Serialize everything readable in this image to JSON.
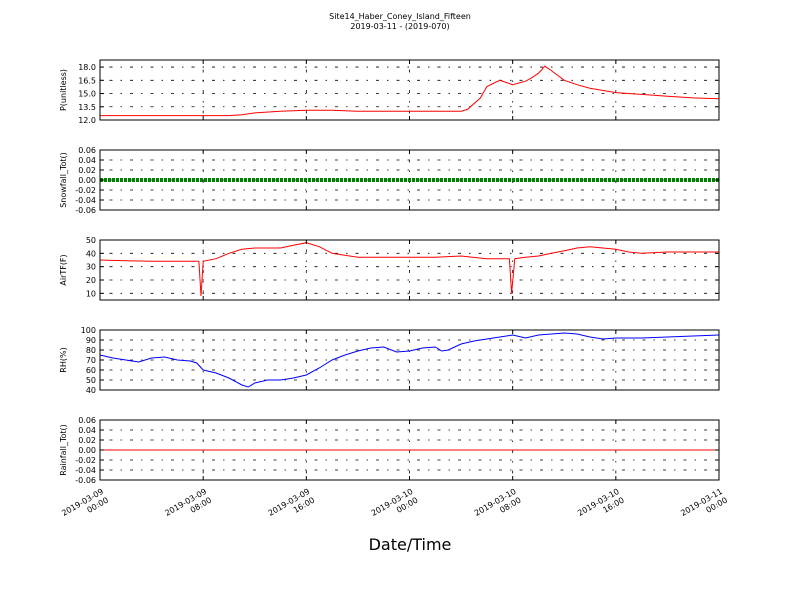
{
  "title": "Site14_Haber_Coney_Island_Fifteen",
  "subtitle": "2019-03-11 - (2019-070)",
  "xlabel": "Date/Time",
  "x_tick_labels": [
    [
      "2019-03-09",
      "00:00"
    ],
    [
      "2019-03-09",
      "08:00"
    ],
    [
      "2019-03-09",
      "16:00"
    ],
    [
      "2019-03-10",
      "00:00"
    ],
    [
      "2019-03-10",
      "08:00"
    ],
    [
      "2019-03-10",
      "16:00"
    ],
    [
      "2019-03-11",
      "00:00"
    ]
  ],
  "chart_data": [
    {
      "type": "line",
      "ylabel": "P(unitless)",
      "color": "#ff0000",
      "ylim": [
        12.0,
        18.8
      ],
      "yticks": [
        "12.0",
        "13.5",
        "15.0",
        "16.5",
        "18.0"
      ],
      "grid": true,
      "x": [
        "2019-03-09 00:00",
        "2019-03-09 02:00",
        "2019-03-09 04:00",
        "2019-03-09 06:00",
        "2019-03-09 08:00",
        "2019-03-09 10:00",
        "2019-03-09 11:00",
        "2019-03-09 12:00",
        "2019-03-09 14:00",
        "2019-03-09 16:00",
        "2019-03-09 18:00",
        "2019-03-09 20:00",
        "2019-03-09 22:00",
        "2019-03-10 00:00",
        "2019-03-10 02:00",
        "2019-03-10 04:00",
        "2019-03-10 04:30",
        "2019-03-10 05:30",
        "2019-03-10 06:00",
        "2019-03-10 07:00",
        "2019-03-10 08:00",
        "2019-03-10 09:00",
        "2019-03-10 09:30",
        "2019-03-10 10:00",
        "2019-03-10 10:30",
        "2019-03-10 11:00",
        "2019-03-10 12:00",
        "2019-03-10 13:00",
        "2019-03-10 14:00",
        "2019-03-10 16:00",
        "2019-03-10 18:00",
        "2019-03-10 20:00",
        "2019-03-10 22:00",
        "2019-03-11 00:00"
      ],
      "y": [
        12.5,
        12.5,
        12.5,
        12.5,
        12.5,
        12.5,
        12.6,
        12.8,
        13.0,
        13.1,
        13.1,
        13.0,
        13.0,
        13.0,
        13.0,
        13.0,
        13.2,
        14.5,
        15.8,
        16.5,
        16.0,
        16.4,
        16.8,
        17.3,
        18.1,
        17.6,
        16.5,
        16.0,
        15.6,
        15.1,
        14.9,
        14.7,
        14.5,
        14.4
      ]
    },
    {
      "type": "line",
      "ylabel": "Snowfall_Tot()",
      "color": "#008000",
      "ylim": [
        -0.06,
        0.06
      ],
      "yticks": [
        "-0.06",
        "-0.04",
        "-0.02",
        "0.00",
        "0.02",
        "0.04",
        "0.06"
      ],
      "grid": true,
      "x": [
        "2019-03-09 00:00",
        "2019-03-11 00:00"
      ],
      "y": [
        0.0,
        0.0
      ]
    },
    {
      "type": "line",
      "ylabel": "AirTF(F)",
      "color": "#ff0000",
      "ylim": [
        5,
        50
      ],
      "yticks": [
        "10",
        "20",
        "30",
        "40",
        "50"
      ],
      "grid": true,
      "x": [
        "2019-03-09 00:00",
        "2019-03-09 02:00",
        "2019-03-09 04:00",
        "2019-03-09 06:00",
        "2019-03-09 07:40",
        "2019-03-09 07:50",
        "2019-03-09 08:00",
        "2019-03-09 09:00",
        "2019-03-09 10:00",
        "2019-03-09 11:00",
        "2019-03-09 12:00",
        "2019-03-09 14:00",
        "2019-03-09 15:00",
        "2019-03-09 16:00",
        "2019-03-09 17:00",
        "2019-03-09 18:00",
        "2019-03-09 20:00",
        "2019-03-09 22:00",
        "2019-03-10 00:00",
        "2019-03-10 02:00",
        "2019-03-10 04:00",
        "2019-03-10 06:00",
        "2019-03-10 07:45",
        "2019-03-10 07:55",
        "2019-03-10 08:10",
        "2019-03-10 09:00",
        "2019-03-10 10:00",
        "2019-03-10 11:00",
        "2019-03-10 12:00",
        "2019-03-10 13:00",
        "2019-03-10 14:00",
        "2019-03-10 16:00",
        "2019-03-10 17:00",
        "2019-03-10 18:00",
        "2019-03-10 20:00",
        "2019-03-10 22:00",
        "2019-03-11 00:00"
      ],
      "y": [
        35,
        34.5,
        34,
        34,
        34,
        8,
        34,
        36,
        40,
        43,
        44,
        44,
        46,
        48,
        45,
        40,
        37,
        37,
        37,
        37,
        38,
        36,
        36,
        10,
        36,
        37,
        38,
        40,
        42,
        44,
        45,
        43,
        41,
        40,
        41,
        41,
        41
      ]
    },
    {
      "type": "line",
      "ylabel": "RH(%)",
      "color": "#0000ff",
      "ylim": [
        40,
        100
      ],
      "yticks": [
        "40",
        "50",
        "60",
        "70",
        "80",
        "90",
        "100"
      ],
      "grid": true,
      "x": [
        "2019-03-09 00:00",
        "2019-03-09 01:00",
        "2019-03-09 02:00",
        "2019-03-09 03:00",
        "2019-03-09 04:00",
        "2019-03-09 05:00",
        "2019-03-09 06:00",
        "2019-03-09 07:00",
        "2019-03-09 07:30",
        "2019-03-09 08:00",
        "2019-03-09 09:00",
        "2019-03-09 10:00",
        "2019-03-09 11:00",
        "2019-03-09 11:30",
        "2019-03-09 12:00",
        "2019-03-09 13:00",
        "2019-03-09 14:00",
        "2019-03-09 15:00",
        "2019-03-09 16:00",
        "2019-03-09 17:00",
        "2019-03-09 18:00",
        "2019-03-09 19:00",
        "2019-03-09 20:00",
        "2019-03-09 21:00",
        "2019-03-09 22:00",
        "2019-03-09 23:00",
        "2019-03-10 00:00",
        "2019-03-10 01:00",
        "2019-03-10 02:00",
        "2019-03-10 02:30",
        "2019-03-10 03:00",
        "2019-03-10 04:00",
        "2019-03-10 05:00",
        "2019-03-10 06:00",
        "2019-03-10 07:00",
        "2019-03-10 08:00",
        "2019-03-10 09:00",
        "2019-03-10 10:00",
        "2019-03-10 11:00",
        "2019-03-10 12:00",
        "2019-03-10 13:00",
        "2019-03-10 14:00",
        "2019-03-10 15:00",
        "2019-03-10 16:00",
        "2019-03-10 18:00",
        "2019-03-10 20:00",
        "2019-03-10 22:00",
        "2019-03-11 00:00"
      ],
      "y": [
        75,
        72,
        70,
        68,
        72,
        73,
        70,
        69,
        67,
        60,
        57,
        52,
        45,
        43,
        47,
        50,
        50,
        52,
        55,
        62,
        70,
        75,
        79,
        82,
        83,
        78,
        79,
        82,
        83,
        79,
        80,
        86,
        89,
        91,
        93,
        95,
        92,
        95,
        96,
        97,
        96,
        93,
        91,
        92,
        92,
        93,
        94,
        95
      ]
    },
    {
      "type": "line",
      "ylabel": "Rainfall_Tot()",
      "color": "#ff0000",
      "ylim": [
        -0.06,
        0.06
      ],
      "yticks": [
        "-0.06",
        "-0.04",
        "-0.02",
        "0.00",
        "0.02",
        "0.04",
        "0.06"
      ],
      "grid": true,
      "x": [
        "2019-03-09 00:00",
        "2019-03-11 00:00"
      ],
      "y": [
        0.0,
        0.0
      ]
    }
  ]
}
